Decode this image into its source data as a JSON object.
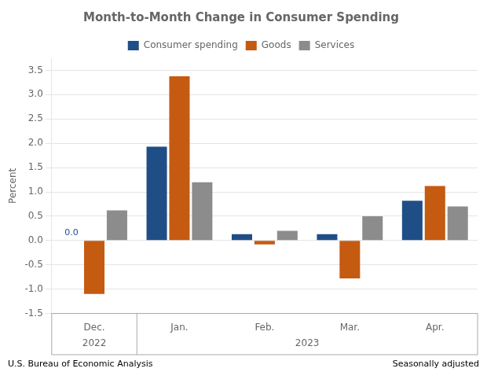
{
  "chart_data": {
    "type": "bar",
    "title": "Month-to-Month Change in Consumer Spending",
    "y_label": "Percent",
    "categories": [
      "Dec.",
      "Jan.",
      "Feb.",
      "Mar.",
      "Apr."
    ],
    "series": [
      {
        "name": "Consumer spending",
        "color": "#1f4e87",
        "values": [
          0.0,
          1.93,
          0.13,
          0.13,
          0.82
        ]
      },
      {
        "name": "Goods",
        "color": "#c55a11",
        "values": [
          -1.1,
          3.38,
          -0.08,
          -0.78,
          1.12
        ]
      },
      {
        "name": "Services",
        "color": "#8c8c8c",
        "values": [
          0.62,
          1.2,
          0.2,
          0.5,
          0.7
        ]
      }
    ],
    "category_groups": [
      {
        "label": "2022",
        "categories": [
          "Dec."
        ]
      },
      {
        "label": "2023",
        "categories": [
          "Jan.",
          "Feb.",
          "Mar.",
          "Apr."
        ]
      }
    ],
    "annotations": [
      {
        "text": "0.0",
        "series": "Consumer spending",
        "category": "Dec."
      }
    ],
    "ylim": [
      -1.5,
      3.75
    ],
    "yticks": [
      -1.5,
      {
        "value": -1.0,
        "label": "-1.0"
      },
      -0.5,
      {
        "value": 0.0,
        "label": "0.0"
      },
      0.5,
      {
        "value": 1.0,
        "label": "1.0"
      },
      1.5,
      {
        "value": 2.0,
        "label": "2.0"
      },
      2.5,
      {
        "value": 3.0,
        "label": "3.0"
      },
      3.5
    ],
    "grid": true,
    "legend": "top",
    "source": "U.S. Bureau of Economic Analysis",
    "note": "Seasonally adjusted"
  }
}
